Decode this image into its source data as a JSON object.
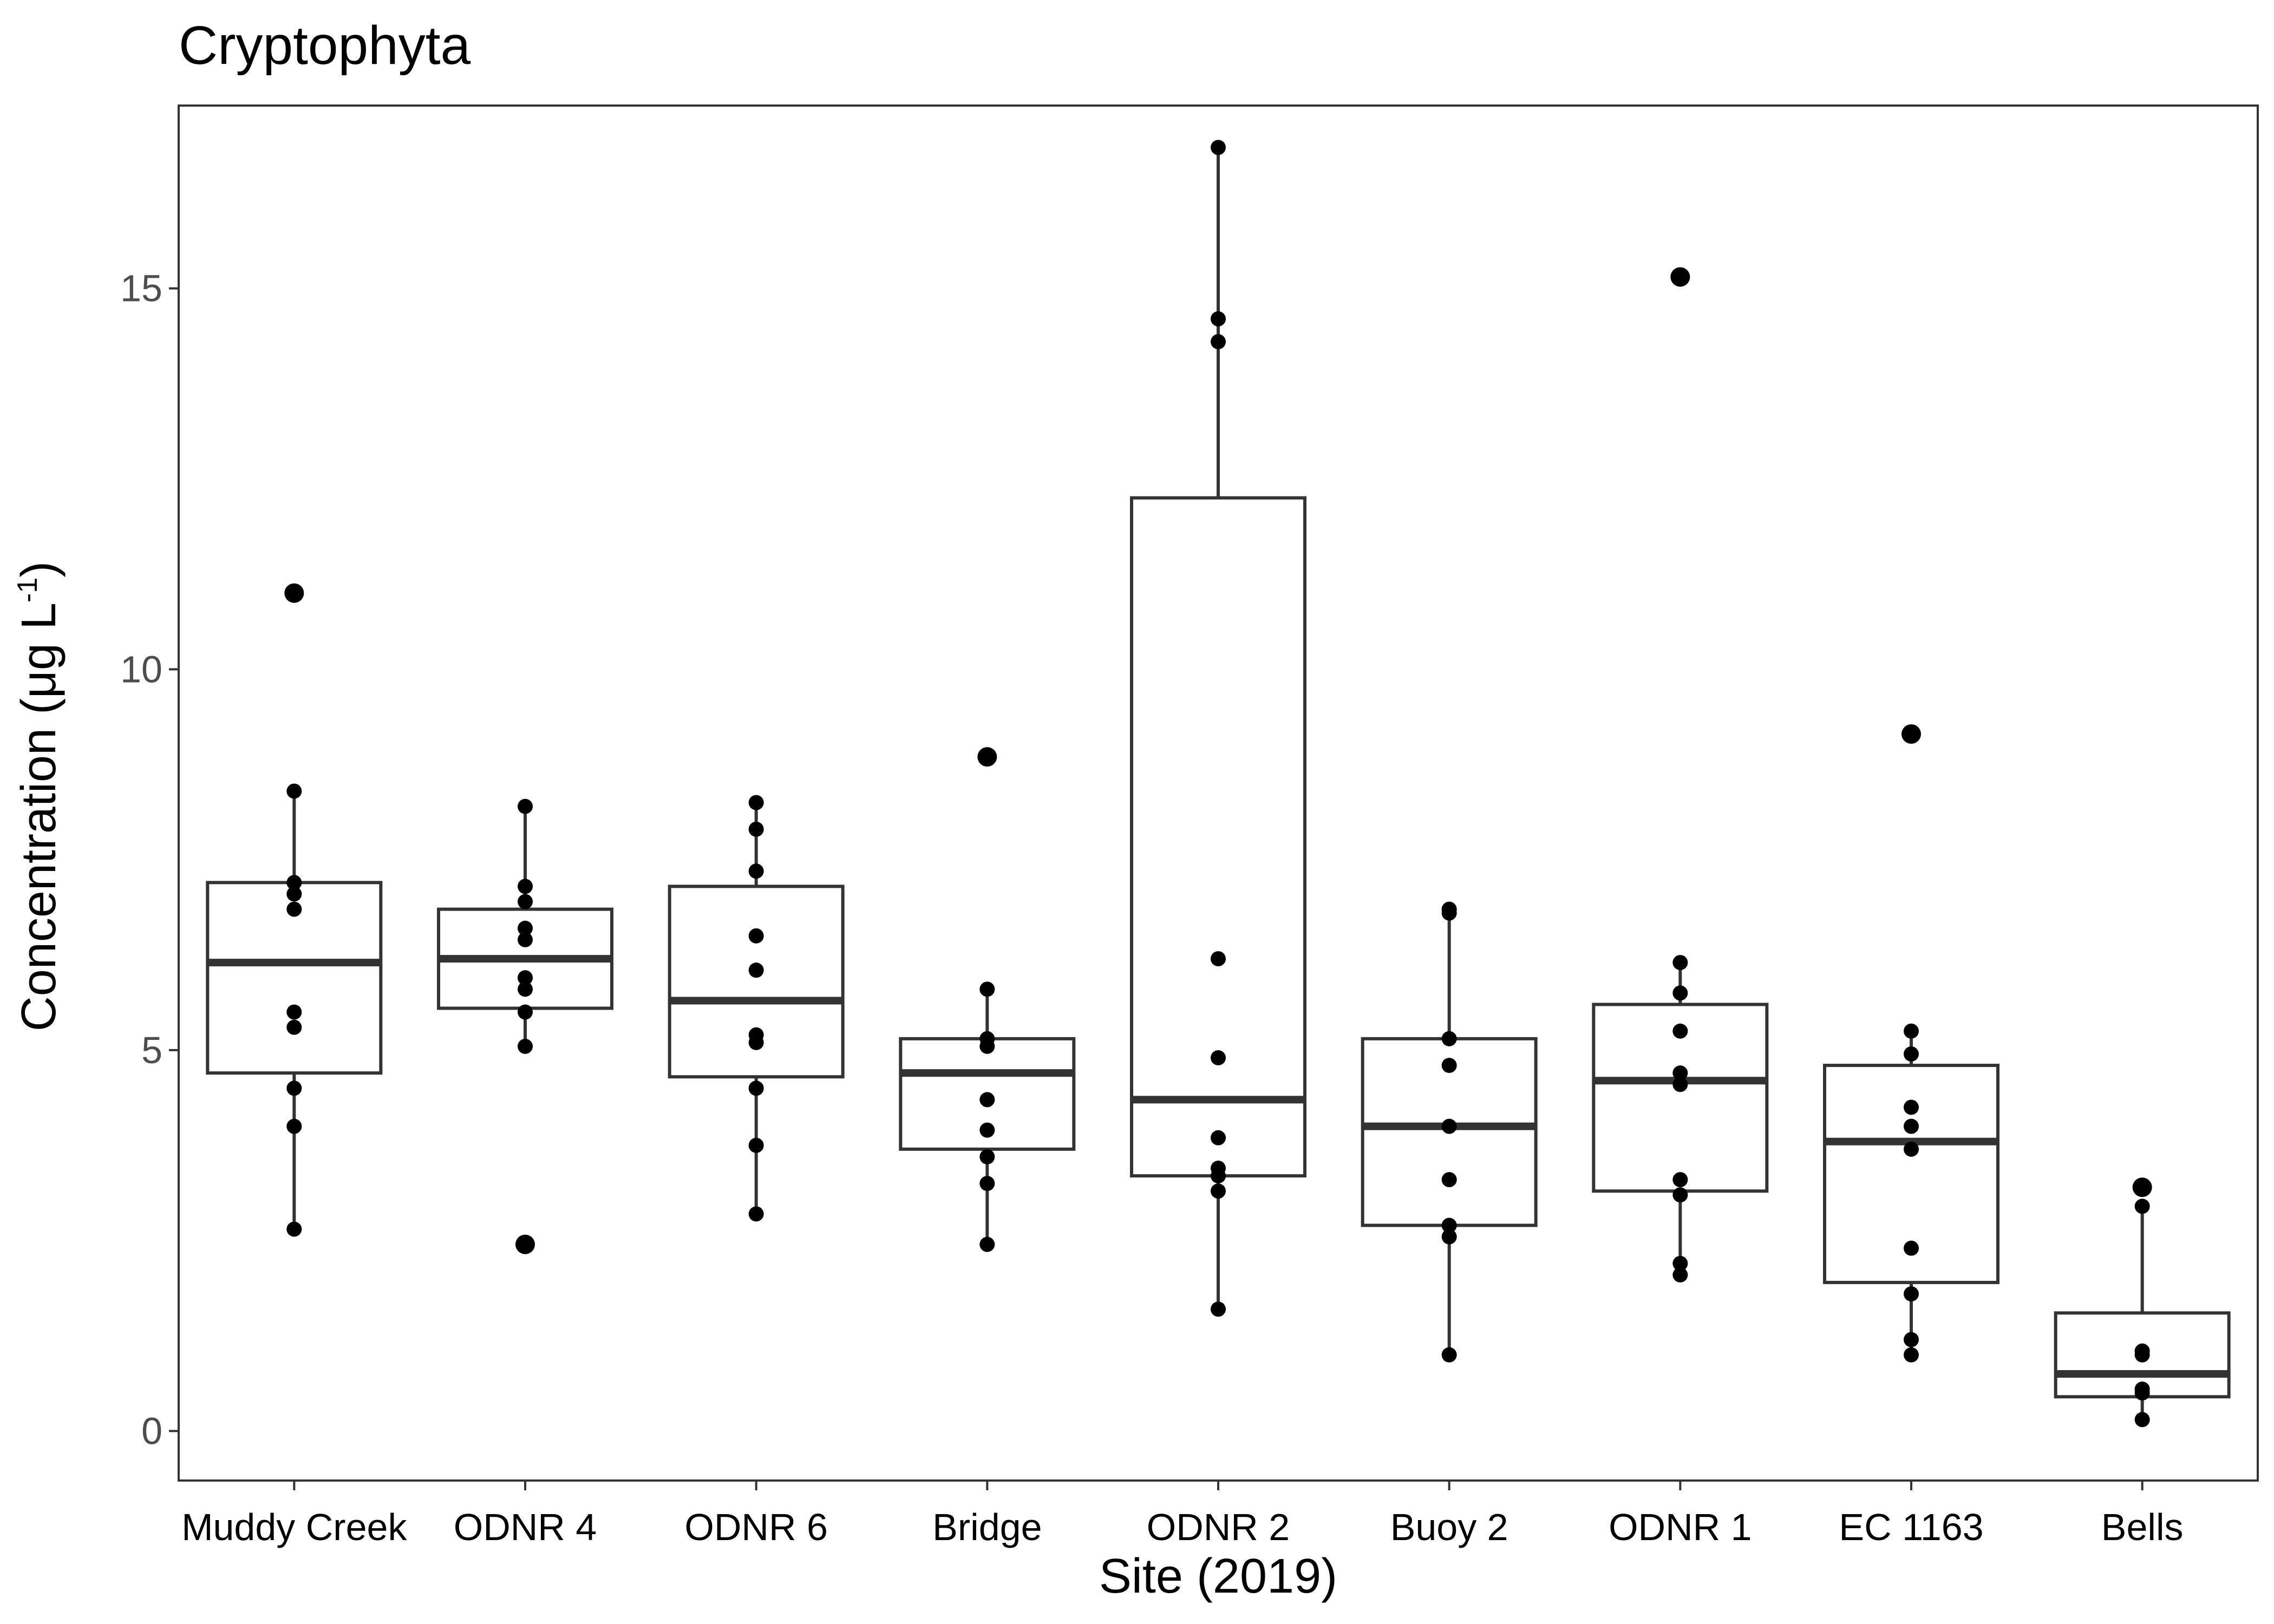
{
  "chart_data": {
    "type": "box",
    "title": "Cryptophyta",
    "xlabel": "Site (2019)",
    "ylabel_parts": {
      "main": "Concentration (μg L",
      "sup": "-1",
      "close": ")"
    },
    "ylim": [
      -0.65,
      17.4
    ],
    "yticks": [
      0,
      5,
      10,
      15
    ],
    "grid": false,
    "categories": [
      "Muddy Creek",
      "ODNR 4",
      "ODNR 6",
      "Bridge",
      "ODNR 2",
      "Buoy 2",
      "ODNR 1",
      "EC 1163",
      "Bells"
    ],
    "boxes": [
      {
        "site": "Muddy Creek",
        "q1": 4.7,
        "median": 6.15,
        "q3": 7.2,
        "whisker_low": 2.65,
        "whisker_high": 8.4,
        "outliers": [
          11.0
        ],
        "points": [
          11.0,
          8.4,
          7.2,
          7.05,
          6.85,
          5.5,
          5.3,
          4.5,
          4.0,
          2.65
        ]
      },
      {
        "site": "ODNR 4",
        "q1": 5.55,
        "median": 6.2,
        "q3": 6.85,
        "whisker_low": 5.05,
        "whisker_high": 8.2,
        "outliers": [
          2.45
        ],
        "points": [
          8.2,
          7.15,
          6.95,
          6.6,
          6.45,
          5.95,
          5.8,
          5.5,
          5.05,
          2.45
        ]
      },
      {
        "site": "ODNR 6",
        "q1": 4.65,
        "median": 5.65,
        "q3": 7.15,
        "whisker_low": 2.85,
        "whisker_high": 8.25,
        "outliers": [],
        "points": [
          8.25,
          7.9,
          7.35,
          6.5,
          6.05,
          5.2,
          5.1,
          4.5,
          3.75,
          2.85
        ]
      },
      {
        "site": "Bridge",
        "q1": 3.7,
        "median": 4.7,
        "q3": 5.15,
        "whisker_low": 2.45,
        "whisker_high": 5.8,
        "outliers": [
          8.85
        ],
        "points": [
          8.85,
          5.8,
          5.15,
          5.05,
          4.35,
          3.95,
          3.6,
          3.25,
          2.45
        ]
      },
      {
        "site": "ODNR 2",
        "q1": 3.35,
        "median": 4.35,
        "q3": 12.25,
        "whisker_low": 1.6,
        "whisker_high": 16.85,
        "outliers": [],
        "points": [
          16.85,
          14.6,
          14.3,
          6.2,
          4.9,
          3.85,
          3.45,
          3.35,
          3.15,
          1.6
        ]
      },
      {
        "site": "Buoy 2",
        "q1": 2.7,
        "median": 4.0,
        "q3": 5.15,
        "whisker_low": 1.0,
        "whisker_high": 6.85,
        "outliers": [],
        "points": [
          6.85,
          6.8,
          5.15,
          4.8,
          4.0,
          3.3,
          2.7,
          2.55,
          1.0
        ]
      },
      {
        "site": "ODNR 1",
        "q1": 3.15,
        "median": 4.6,
        "q3": 5.6,
        "whisker_low": 2.05,
        "whisker_high": 6.15,
        "outliers": [
          15.15
        ],
        "points": [
          15.15,
          6.15,
          5.75,
          5.25,
          4.7,
          4.55,
          3.3,
          3.1,
          2.2,
          2.05
        ]
      },
      {
        "site": "EC 1163",
        "q1": 1.95,
        "median": 3.8,
        "q3": 4.8,
        "whisker_low": 1.0,
        "whisker_high": 5.25,
        "outliers": [
          9.15
        ],
        "points": [
          9.15,
          5.25,
          4.95,
          4.25,
          4.0,
          3.7,
          2.4,
          1.8,
          1.2,
          1.0
        ]
      },
      {
        "site": "Bells",
        "q1": 0.45,
        "median": 0.75,
        "q3": 1.55,
        "whisker_low": 0.15,
        "whisker_high": 2.95,
        "outliers": [
          3.2
        ],
        "points": [
          3.2,
          2.95,
          1.05,
          1.0,
          0.55,
          0.5,
          0.15
        ]
      }
    ]
  },
  "colors": {
    "box_stroke": "#333333",
    "box_fill": "#ffffff",
    "point": "#000000",
    "panel_border": "#333333",
    "tick": "#333333"
  }
}
